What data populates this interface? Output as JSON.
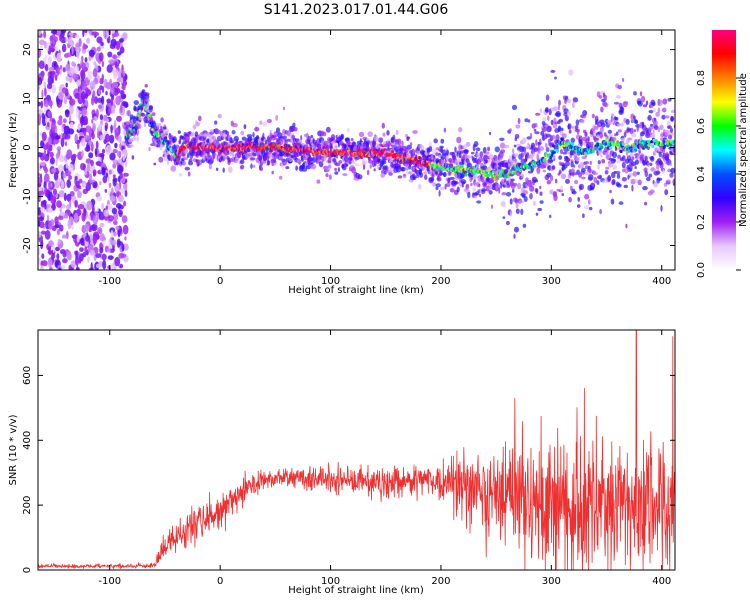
{
  "figure": {
    "title": "S141.2023.017.01.44.G06"
  },
  "chart_data": [
    {
      "type": "heatmap",
      "xlabel": "Height of straight line (km)",
      "ylabel": "Frequency (Hz)",
      "xlim": [
        -165,
        412
      ],
      "ylim": [
        -25,
        24
      ],
      "xticks": [
        -100,
        0,
        100,
        200,
        300,
        400
      ],
      "yticks": [
        -20,
        -10,
        0,
        10,
        20
      ],
      "colorbar": {
        "label": "Normalized spectral amplitude",
        "range": [
          0,
          1
        ],
        "ticks": [
          0.0,
          0.2,
          0.4,
          0.6,
          0.8
        ],
        "colors": [
          "#ffffff",
          "#e6c8ff",
          "#a020f0",
          "#3000ff",
          "#0050ff",
          "#00ffff",
          "#00ff00",
          "#ffff00",
          "#ff8000",
          "#ff0000",
          "#ff0080"
        ]
      },
      "noise_region_x": [
        -165,
        -85
      ],
      "ridge": {
        "x": [
          -85,
          -75,
          -70,
          -60,
          -50,
          -40,
          -30,
          -20,
          0,
          50,
          100,
          150,
          180,
          200,
          220,
          240,
          260,
          270,
          290,
          310,
          330,
          350,
          370,
          390,
          412
        ],
        "y": [
          2,
          5,
          10,
          3,
          1,
          -2,
          0.5,
          0,
          0,
          0,
          -1,
          -1,
          -3,
          -4,
          -4.5,
          -5,
          -5.5,
          -4,
          -3,
          1,
          -1,
          1,
          0,
          1,
          1
        ]
      }
    },
    {
      "type": "line",
      "xlabel": "Height of straight line (km)",
      "ylabel": "SNR (10 * v/v)",
      "xlim": [
        -165,
        412
      ],
      "ylim": [
        0,
        740
      ],
      "xticks": [
        -100,
        0,
        100,
        200,
        300,
        400
      ],
      "yticks": [
        0,
        200,
        400,
        600
      ],
      "color": "#f03030",
      "envelope": {
        "x": [
          -165,
          -60,
          -55,
          -45,
          -30,
          -15,
          0,
          10,
          30,
          50,
          100,
          150,
          190,
          210,
          250,
          300,
          350,
          380,
          412
        ],
        "mean": [
          12,
          12,
          40,
          90,
          130,
          150,
          175,
          215,
          265,
          285,
          280,
          270,
          280,
          270,
          230,
          205,
          200,
          200,
          195
        ],
        "spread": [
          6,
          6,
          25,
          45,
          55,
          55,
          50,
          45,
          35,
          30,
          35,
          40,
          45,
          70,
          140,
          180,
          190,
          195,
          190
        ]
      },
      "peaks": [
        {
          "x": 377,
          "y": 740
        },
        {
          "x": 410,
          "y": 720
        },
        {
          "x": 267,
          "y": 530
        },
        {
          "x": 330,
          "y": 560
        }
      ]
    }
  ]
}
